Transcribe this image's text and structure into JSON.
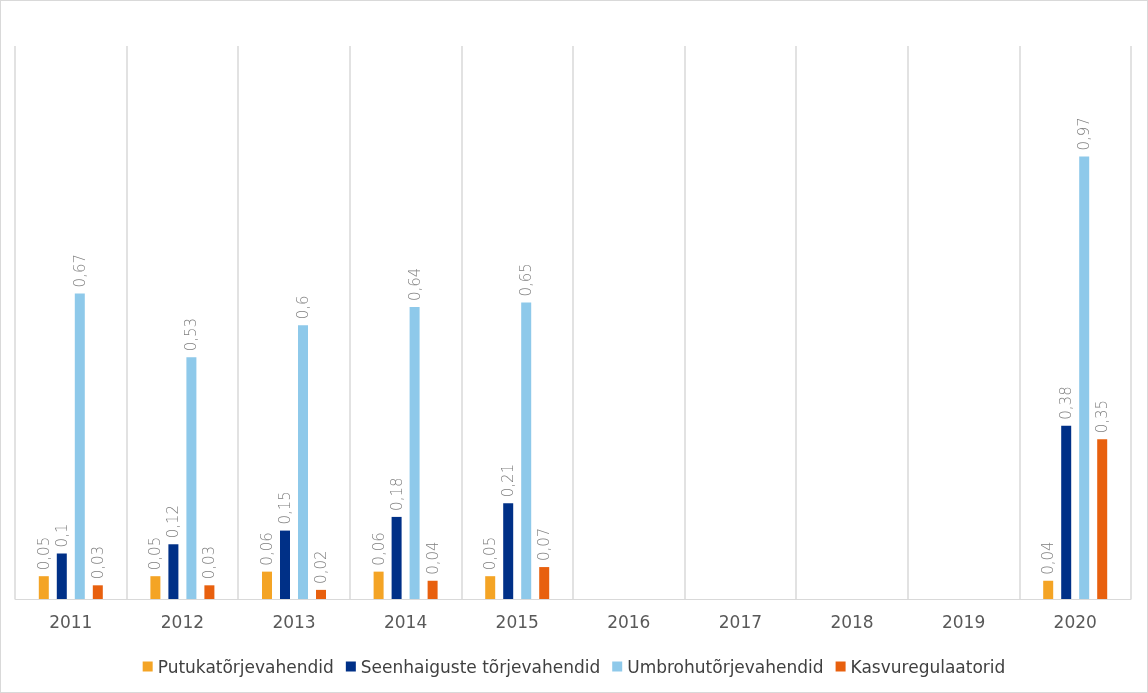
{
  "chart_data": {
    "type": "bar",
    "categories": [
      "2011",
      "2012",
      "2013",
      "2014",
      "2015",
      "2016",
      "2017",
      "2018",
      "2019",
      "2020"
    ],
    "series": [
      {
        "name": "Putukatõrjevahendid",
        "color": "#f4a425",
        "values": [
          0.05,
          0.05,
          0.06,
          0.06,
          0.05,
          null,
          null,
          null,
          null,
          0.04
        ],
        "value_labels": [
          "0,05",
          "0,05",
          "0,06",
          "0,06",
          "0,05",
          null,
          null,
          null,
          null,
          "0,04"
        ]
      },
      {
        "name": "Seenhaiguste tõrjevahendid",
        "color": "#003087",
        "values": [
          0.1,
          0.12,
          0.15,
          0.18,
          0.21,
          null,
          null,
          null,
          null,
          0.38
        ],
        "value_labels": [
          "0,1",
          "0,12",
          "0,15",
          "0,18",
          "0,21",
          null,
          null,
          null,
          null,
          "0,38"
        ]
      },
      {
        "name": "Umbrohutõrjevahendid",
        "color": "#8ec9ea",
        "values": [
          0.67,
          0.53,
          0.6,
          0.64,
          0.65,
          null,
          null,
          null,
          null,
          0.97
        ],
        "value_labels": [
          "0,67",
          "0,53",
          "0,6",
          "0,64",
          "0,65",
          null,
          null,
          null,
          null,
          "0,97"
        ]
      },
      {
        "name": "Kasvuregulaatorid",
        "color": "#e8600e",
        "values": [
          0.03,
          0.03,
          0.02,
          0.04,
          0.07,
          null,
          null,
          null,
          null,
          0.35
        ],
        "value_labels": [
          "0,03",
          "0,03",
          "0,02",
          "0,04",
          "0,07",
          null,
          null,
          null,
          null,
          "0,35"
        ]
      }
    ],
    "grid": "x",
    "legend": "bottom",
    "tick_labels": "x"
  }
}
